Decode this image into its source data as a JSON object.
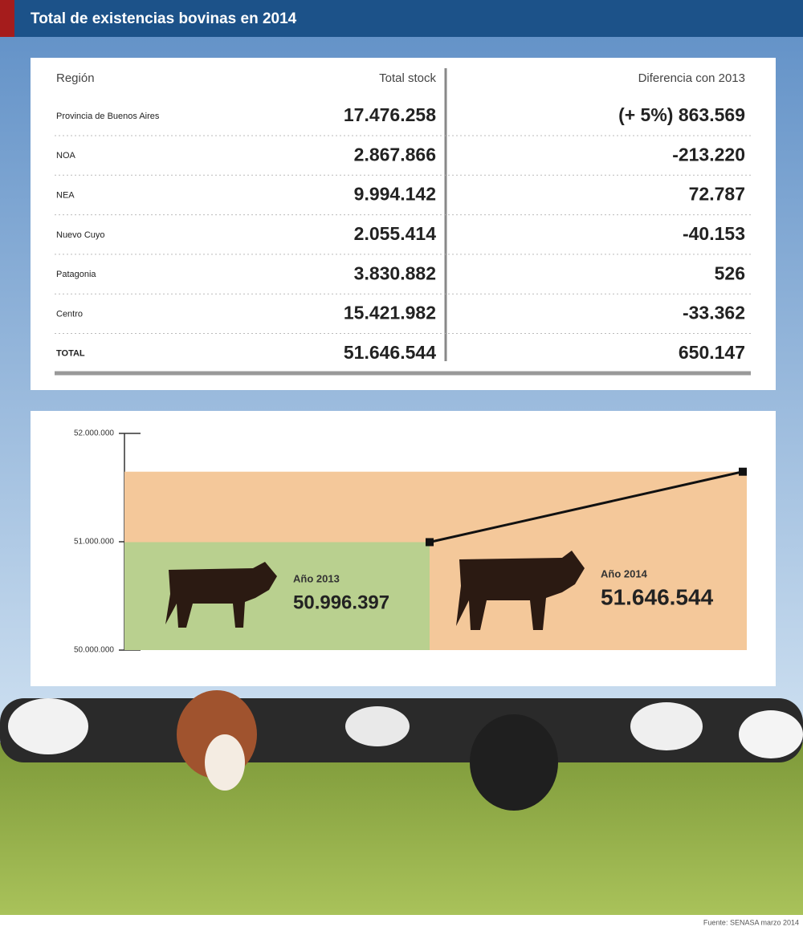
{
  "title": "Total de existencias bovinas en 2014",
  "table": {
    "columns": [
      "Región",
      "Total stock",
      "Diferencia con 2013"
    ],
    "rows": [
      [
        "Provincia de Buenos Aires",
        "17.476.258",
        "(+ 5%) 863.569"
      ],
      [
        "NOA",
        "2.867.866",
        "-213.220"
      ],
      [
        "NEA",
        "9.994.142",
        "72.787"
      ],
      [
        "Nuevo Cuyo",
        "2.055.414",
        "-40.153"
      ],
      [
        "Patagonia",
        "3.830.882",
        "526"
      ],
      [
        "Centro",
        "15.421.982",
        "-33.362"
      ],
      [
        "TOTAL",
        "51.646.544",
        "650.147"
      ]
    ]
  },
  "chart_data": {
    "type": "line",
    "categories": [
      "Año 2013",
      "Año 2014"
    ],
    "values": [
      50996397,
      51646544
    ],
    "value_labels": [
      "50.996.397",
      "51.646.544"
    ],
    "colors": [
      "#b9d08f",
      "#f4c89a"
    ],
    "ylim": [
      50000000,
      52000000
    ],
    "yticks": [
      {
        "value": 50000000,
        "label": "50.000.000"
      },
      {
        "value": 51000000,
        "label": "51.000.000"
      },
      {
        "value": 52000000,
        "label": "52.000.000"
      }
    ]
  },
  "source": "Fuente: SENASA marzo 2014"
}
